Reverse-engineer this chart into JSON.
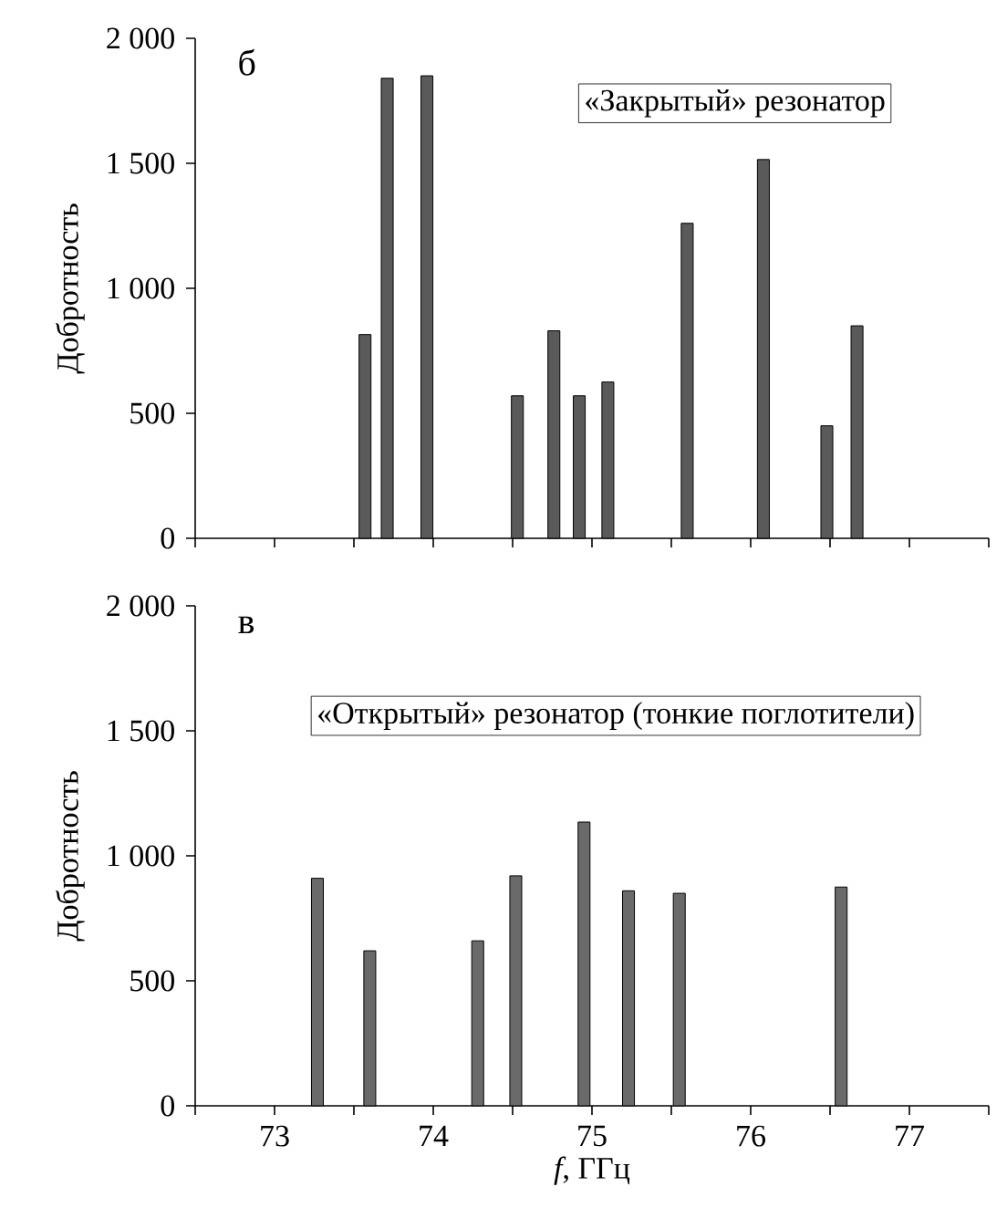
{
  "chart_data": [
    {
      "type": "bar",
      "x": [
        73.57,
        73.71,
        73.96,
        74.53,
        74.76,
        74.92,
        75.1,
        75.6,
        76.08,
        76.48,
        76.67
      ],
      "values": [
        815,
        1840,
        1850,
        570,
        830,
        570,
        625,
        1260,
        1515,
        450,
        850
      ],
      "color": "#5a5a5a",
      "ylabel": "Добротность",
      "annotations": [
        "б",
        "«Закрытый» резонатор"
      ],
      "xlim": [
        72.5,
        77.5
      ],
      "ylim": [
        0,
        2000
      ],
      "xticks": [
        72.5,
        73,
        73.5,
        74,
        74.5,
        75,
        75.5,
        76,
        76.5,
        77,
        77.5
      ],
      "yticks": [
        0,
        500,
        {
          "value": 1000,
          "label": "1 000"
        },
        {
          "value": 1500,
          "label": "1 500"
        },
        {
          "value": 2000,
          "label": "2 000"
        }
      ],
      "tick_labels": "y"
    },
    {
      "type": "bar",
      "x": [
        73.27,
        73.6,
        74.28,
        74.52,
        74.95,
        75.23,
        75.55,
        76.57
      ],
      "values": [
        910,
        620,
        660,
        920,
        1135,
        860,
        850,
        875
      ],
      "color": "#6a6a6a",
      "xlabel": "*f*, ГГц",
      "ylabel": "Добротность",
      "annotations": [
        "в",
        "«Открытый» резонатор (тонкие поглотители)"
      ],
      "xlim": [
        72.5,
        77.5
      ],
      "ylim": [
        0,
        2000
      ],
      "xticks": [
        {
          "value": 72.5,
          "label": null
        },
        73,
        {
          "value": 73.5,
          "label": null
        },
        74,
        {
          "value": 74.5,
          "label": null
        },
        75,
        {
          "value": 75.5,
          "label": null
        },
        76,
        {
          "value": 76.5,
          "label": null
        },
        77,
        {
          "value": 77.5,
          "label": null
        }
      ],
      "yticks": [
        0,
        500,
        {
          "value": 1000,
          "label": "1 000"
        },
        {
          "value": 1500,
          "label": "1 500"
        },
        {
          "value": 2000,
          "label": "2 000"
        }
      ]
    }
  ]
}
